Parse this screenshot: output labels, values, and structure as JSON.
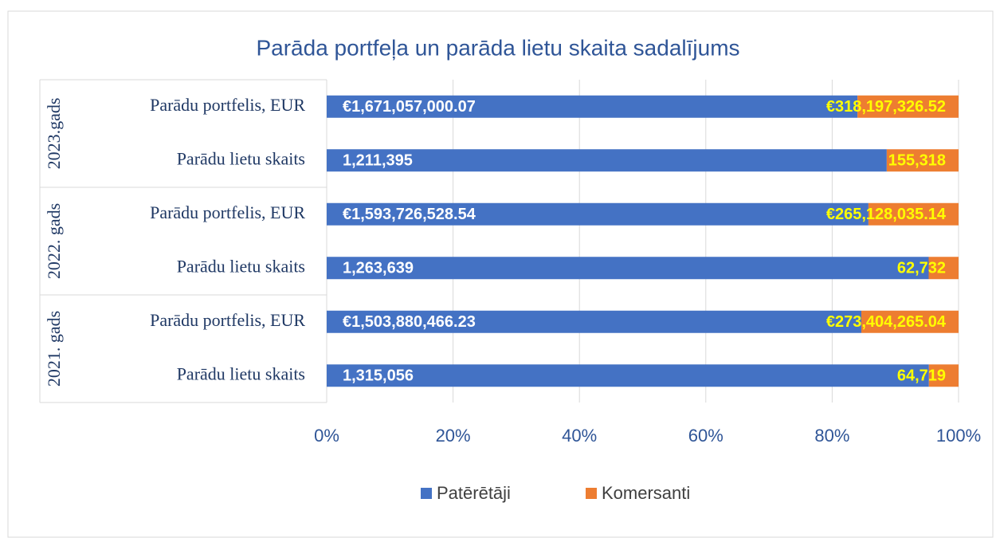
{
  "chart_data": {
    "type": "bar",
    "orientation": "horizontal",
    "stacking": "percent",
    "title": "Parāda portfeļa un parāda lietu skaita sadalījums",
    "group_labels": [
      "2023.gads",
      "2022. gads",
      "2021. gads"
    ],
    "categories": [
      "Parādu portfelis, EUR",
      "Parādu lietu skaits",
      "Parādu portfelis, EUR",
      "Parādu lietu skaits",
      "Parādu portfelis, EUR",
      "Parādu lietu skaits"
    ],
    "series": [
      {
        "name": "Patērētāji",
        "color": "#4472c4",
        "values": [
          1671057000.07,
          1211395,
          1593726528.54,
          1263639,
          1503880466.23,
          1315056
        ],
        "value_labels": [
          "€1,671,057,000.07",
          "1,211,395",
          "€1,593,726,528.54",
          "1,263,639",
          "€1,503,880,466.23",
          "1,315,056"
        ]
      },
      {
        "name": "Komersanti",
        "color": "#ed7d31",
        "values": [
          318197326.52,
          155318,
          265128035.14,
          62732,
          273404265.04,
          64719
        ],
        "value_labels": [
          "€318,197,326.52",
          "155,318",
          "€265,128,035.14",
          "62,732",
          "€273,404,265.04",
          "64,719"
        ]
      }
    ],
    "xlim": [
      0,
      100
    ],
    "xticks": [
      {
        "value": 0,
        "label": "0%"
      },
      {
        "value": 20,
        "label": "20%"
      },
      {
        "value": 40,
        "label": "40%"
      },
      {
        "value": 60,
        "label": "60%"
      },
      {
        "value": 80,
        "label": "80%"
      },
      {
        "value": 100,
        "label": "100%"
      }
    ],
    "grid": true,
    "legend": "bottom"
  }
}
